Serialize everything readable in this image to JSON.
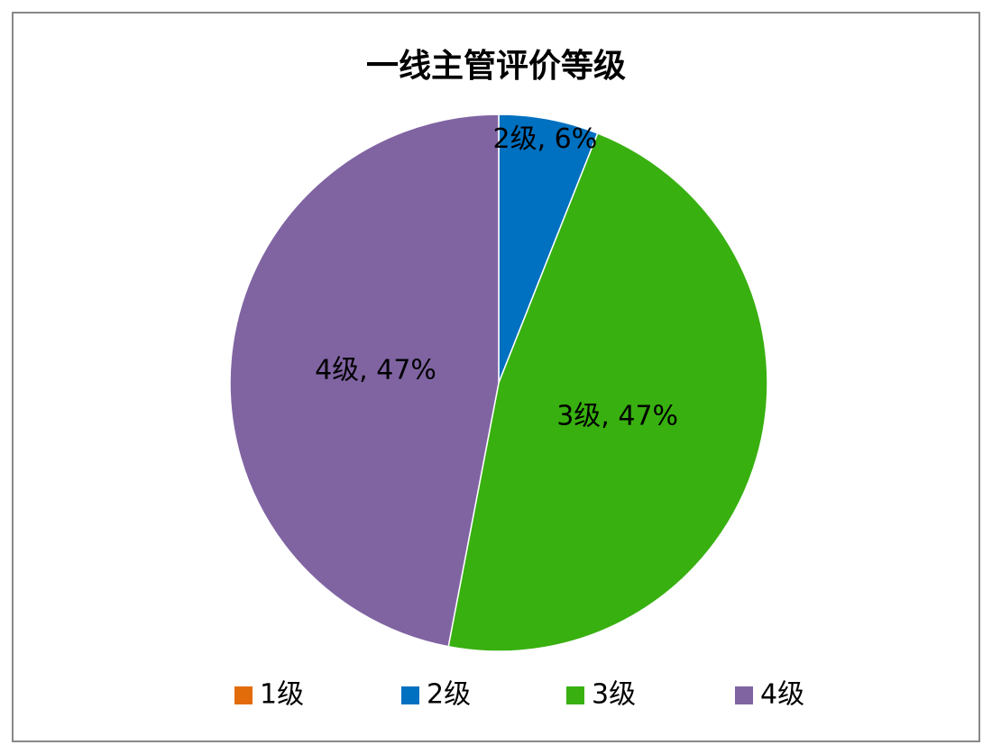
{
  "chart_data": {
    "type": "pie",
    "title": "一线主管评价等级",
    "categories": [
      "1级",
      "2级",
      "3级",
      "4级"
    ],
    "values": [
      0,
      6,
      47,
      47
    ],
    "value_labels": [
      null,
      "2级, 6%",
      "3级, 47%",
      "4级, 47%"
    ],
    "colors": [
      "#e36c0a",
      "#0070c0",
      "#38b010",
      "#8064a2"
    ],
    "legend": "bottom"
  }
}
